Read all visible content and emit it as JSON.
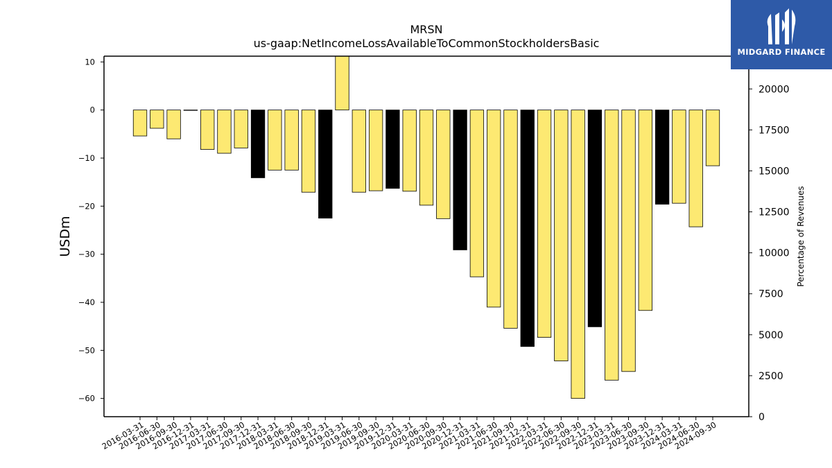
{
  "chart_data": {
    "type": "bar",
    "title": "MRSN",
    "subtitle": "us-gaap:NetIncomeLossAvailableToCommonStockholdersBasic",
    "ylabel": "USDm",
    "y2label": "Percentage of Revenues",
    "ylim": [
      -63.8,
      11.2
    ],
    "y2lim": [
      0,
      22000
    ],
    "yticks": [
      10,
      0,
      -10,
      -20,
      -30,
      -40,
      -50,
      -60
    ],
    "y2ticks": [
      0,
      2500,
      5000,
      7500,
      10000,
      12500,
      15000,
      17500,
      20000
    ],
    "categories": [
      "2016-03-31",
      "2016-06-30",
      "2016-09-30",
      "2016-12-31",
      "2017-03-31",
      "2017-06-30",
      "2017-09-30",
      "2017-12-31",
      "2018-03-31",
      "2018-06-30",
      "2018-09-30",
      "2018-12-31",
      "2019-03-31",
      "2019-06-30",
      "2019-09-30",
      "2019-12-31",
      "2020-03-31",
      "2020-06-30",
      "2020-09-30",
      "2020-12-31",
      "2021-03-31",
      "2021-06-30",
      "2021-09-30",
      "2021-12-31",
      "2022-03-31",
      "2022-06-30",
      "2022-09-30",
      "2022-12-31",
      "2023-03-31",
      "2023-06-30",
      "2023-09-30",
      "2023-12-31",
      "2024-03-31",
      "2024-06-30",
      "2024-09-30"
    ],
    "values": [
      -5.4,
      -3.8,
      -6.0,
      0.0,
      -8.2,
      -9.0,
      -7.9,
      -14.1,
      -12.5,
      -12.5,
      -17.1,
      -22.5,
      11.5,
      -17.1,
      -16.8,
      -16.3,
      -16.9,
      -19.8,
      -22.6,
      -29.1,
      -34.7,
      -41.0,
      -45.4,
      -49.2,
      -47.3,
      -52.2,
      -60.0,
      -45.1,
      -56.2,
      -54.4,
      -41.7,
      -19.6,
      -19.4,
      -24.3,
      -11.6
    ],
    "annual_flags": [
      false,
      false,
      false,
      true,
      false,
      false,
      false,
      true,
      false,
      false,
      false,
      true,
      false,
      false,
      false,
      true,
      false,
      false,
      false,
      true,
      false,
      false,
      false,
      true,
      false,
      false,
      false,
      true,
      false,
      false,
      false,
      true,
      false,
      false,
      false
    ],
    "colors": {
      "quarter": "#fde972",
      "annual": "#000000",
      "edge": "#000000"
    },
    "grid": false,
    "legend": "none"
  },
  "logo": {
    "text": "MIDGARD FINANCE",
    "background": "#2e5aa8"
  }
}
